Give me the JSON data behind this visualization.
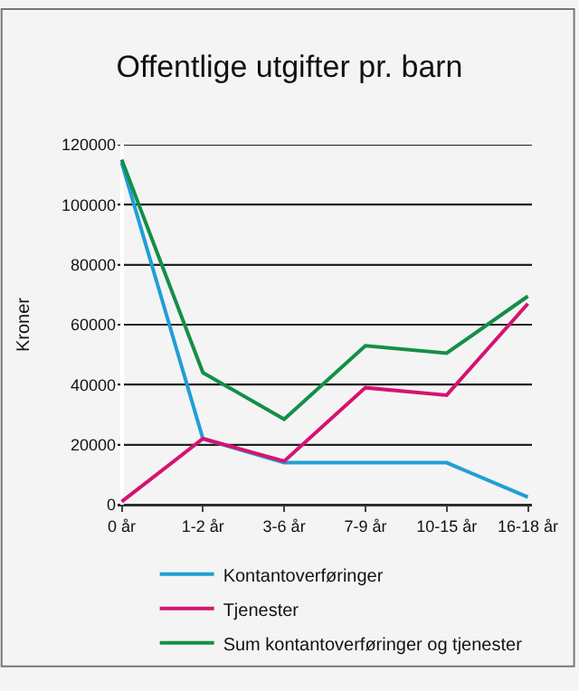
{
  "chart_data": {
    "type": "line",
    "title": "Offentlige utgifter pr. barn",
    "ylabel": "Kroner",
    "categories": [
      "0 år",
      "1-2 år",
      "3-6 år",
      "7-9 år",
      "10-15 år",
      "16-18 år"
    ],
    "series": [
      {
        "name": "Kontantoverføringer",
        "color": "#1f9fd6",
        "values": [
          114000,
          22000,
          14000,
          14000,
          14000,
          2500
        ]
      },
      {
        "name": "Tjenester",
        "color": "#d6136f",
        "values": [
          1000,
          22000,
          14500,
          39000,
          36500,
          67000
        ]
      },
      {
        "name": "Sum kontantoverføringer og tjenester",
        "color": "#138f48",
        "values": [
          115000,
          44000,
          28500,
          53000,
          50500,
          69500
        ]
      }
    ],
    "ylim": [
      0,
      120000
    ],
    "yticks": [
      0,
      20000,
      40000,
      60000,
      80000,
      100000,
      120000
    ],
    "grid": "y",
    "legend": "bottom",
    "marker": "none",
    "line_style": "solid"
  }
}
